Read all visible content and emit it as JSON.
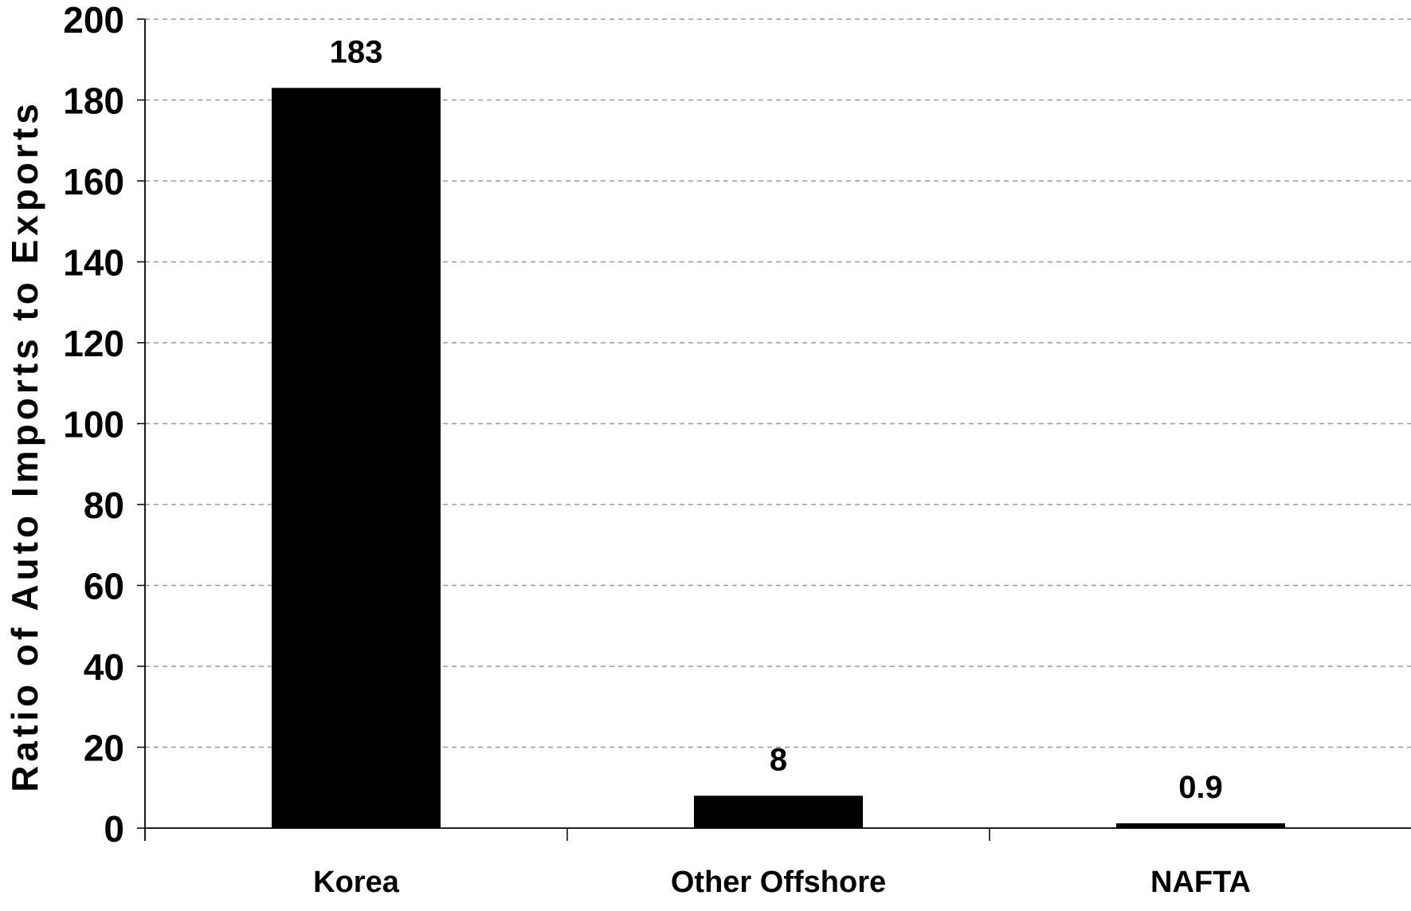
{
  "chart_data": {
    "type": "bar",
    "categories": [
      "Korea",
      "Other Offshore",
      "NAFTA"
    ],
    "values": [
      183,
      8,
      0.9
    ],
    "data_labels": [
      "183",
      "8",
      "0.9"
    ],
    "title": "",
    "xlabel": "",
    "ylabel": "Ratio of Auto Imports to Exports",
    "ylim": [
      0,
      200
    ],
    "yticks": [
      0,
      20,
      40,
      60,
      80,
      100,
      120,
      140,
      160,
      180,
      200
    ],
    "grid": "horizontal dashed",
    "legend": "none",
    "colors": {
      "bar": "#000000",
      "grid": "#999999",
      "axis": "#000000",
      "background": "#ffffff"
    }
  }
}
